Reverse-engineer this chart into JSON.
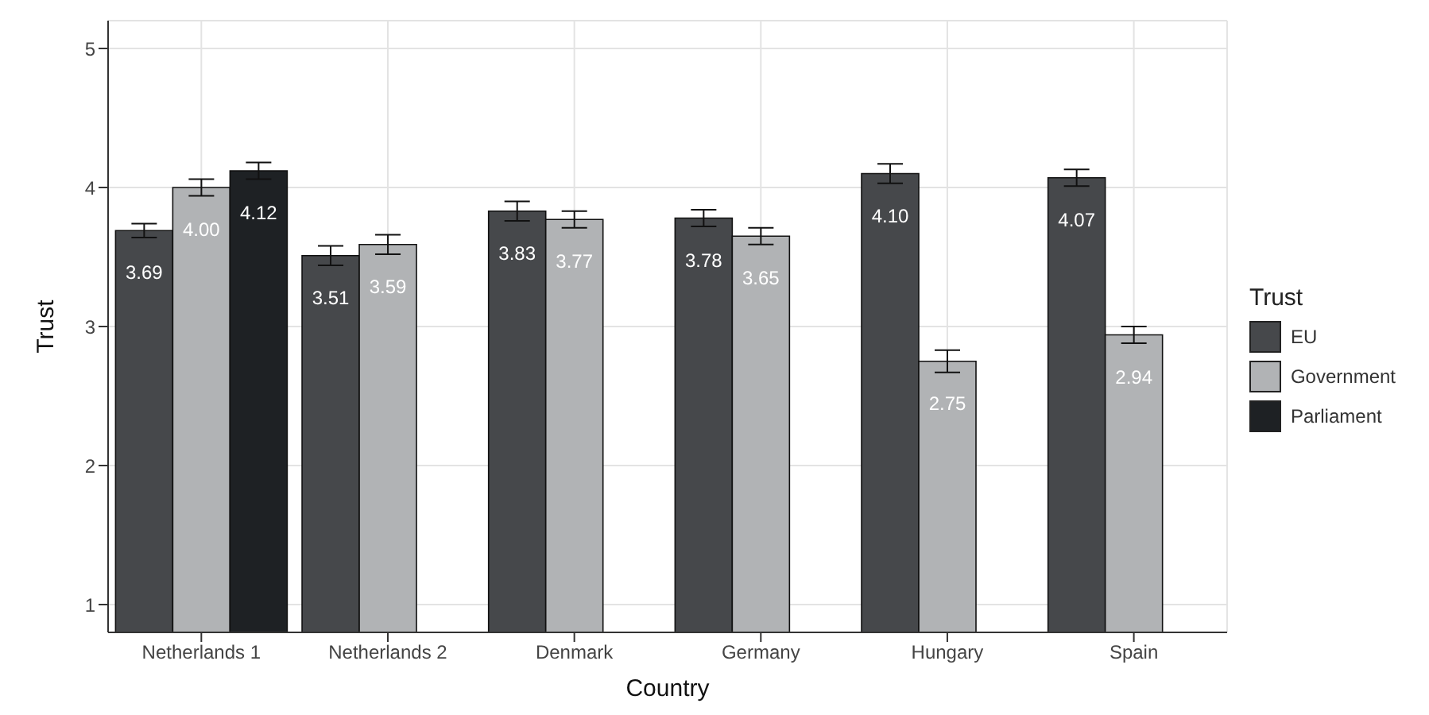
{
  "chart_data": {
    "type": "bar",
    "xlabel": "Country",
    "ylabel": "Trust",
    "legend_title": "Trust",
    "categories": [
      "Netherlands 1",
      "Netherlands 2",
      "Denmark",
      "Germany",
      "Hungary",
      "Spain"
    ],
    "series": [
      {
        "name": "EU",
        "color": "#46484b",
        "values": [
          3.69,
          3.51,
          3.83,
          3.78,
          4.1,
          4.07
        ],
        "errors": [
          0.05,
          0.07,
          0.07,
          0.06,
          0.07,
          0.06
        ],
        "value_labels": [
          "3.69",
          "3.51",
          "3.83",
          "3.78",
          "4.10",
          "4.07"
        ]
      },
      {
        "name": "Government",
        "color": "#b1b3b5",
        "values": [
          4.0,
          3.59,
          3.77,
          3.65,
          2.75,
          2.94
        ],
        "errors": [
          0.06,
          0.07,
          0.06,
          0.06,
          0.08,
          0.06
        ],
        "value_labels": [
          "4.00",
          "3.59",
          "3.77",
          "3.65",
          "2.75",
          "2.94"
        ]
      },
      {
        "name": "Parliament",
        "color": "#1e2124",
        "values": [
          4.12,
          null,
          null,
          null,
          null,
          null
        ],
        "errors": [
          0.06,
          null,
          null,
          null,
          null,
          null
        ],
        "value_labels": [
          "4.12",
          null,
          null,
          null,
          null,
          null
        ]
      }
    ],
    "ylim": [
      0.8,
      5.2
    ],
    "yticks": [
      1,
      2,
      3,
      4,
      5
    ],
    "grid": true,
    "legend": "right"
  }
}
